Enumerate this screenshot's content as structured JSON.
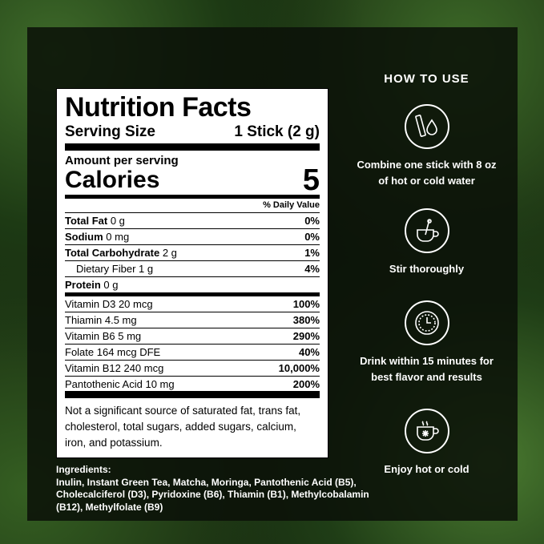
{
  "nutrition": {
    "title": "Nutrition Facts",
    "serving_label": "Serving Size",
    "serving_value": "1 Stick (2 g)",
    "amount_per_serving": "Amount per serving",
    "calories_label": "Calories",
    "calories_value": "5",
    "daily_value_header": "% Daily Value",
    "rows": [
      {
        "name": "Total Fat",
        "amount": "0 g",
        "dv": "0%",
        "bold": true
      },
      {
        "name": "Sodium",
        "amount": "0 mg",
        "dv": "0%",
        "bold": true
      },
      {
        "name": "Total Carbohydrate",
        "amount": "2 g",
        "dv": "1%",
        "bold": true
      },
      {
        "name": "Dietary Fiber",
        "amount": "1 g",
        "dv": "4%",
        "bold": false
      },
      {
        "name": "Protein",
        "amount": "0 g",
        "dv": "",
        "bold": true
      }
    ],
    "vitamins": [
      {
        "name": "Vitamin D3 20 mcg",
        "dv": "100%"
      },
      {
        "name": "Thiamin 4.5 mg",
        "dv": "380%"
      },
      {
        "name": "Vitamin B6 5 mg",
        "dv": "290%"
      },
      {
        "name": "Folate 164 mcg DFE",
        "dv": "40%"
      },
      {
        "name": "Vitamin B12 240 mcg",
        "dv": "10,000%"
      },
      {
        "name": "Pantothenic Acid 10 mg",
        "dv": "200%"
      }
    ],
    "footnote": "Not a significant source of saturated fat, trans fat, cholesterol, total sugars, added sugars, calcium, iron, and potassium."
  },
  "ingredients": {
    "label": "Ingredients:",
    "text": "Inulin, Instant Green Tea, Matcha, Moringa, Pantothenic Acid (B5), Cholecalciferol (D3), Pyridoxine (B6), Thiamin (B1), Methylcobalamin (B12), Methylfolate (B9)"
  },
  "how_to_use": {
    "title": "HOW TO USE",
    "steps": [
      {
        "icon": "stick-water-drop-icon",
        "text": "Combine one stick with 8 oz of hot or cold water"
      },
      {
        "icon": "stirring-cup-icon",
        "text": "Stir thoroughly"
      },
      {
        "icon": "clock-icon",
        "text": "Drink within 15 minutes for best flavor and results"
      },
      {
        "icon": "hot-cold-cup-icon",
        "text": "Enjoy hot or cold"
      }
    ]
  }
}
